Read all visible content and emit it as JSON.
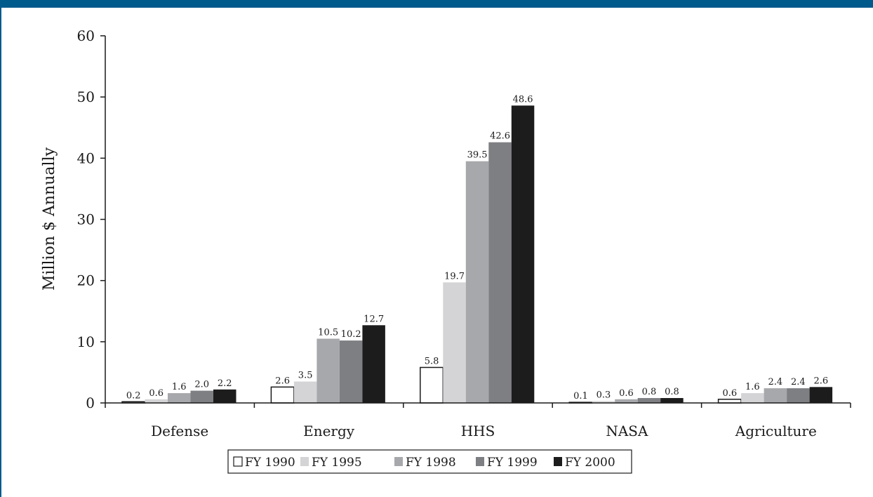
{
  "colors": {
    "frame_bar": "#005a8c",
    "axis": "#1a1a1a"
  },
  "chart_data": {
    "type": "bar",
    "title": "",
    "xlabel": "",
    "ylabel": "Million $ Annually",
    "ylim": [
      0,
      60
    ],
    "yticks": [
      0,
      10,
      20,
      30,
      40,
      50,
      60
    ],
    "grid": false,
    "legend_position": "bottom",
    "categories": [
      "Defense",
      "Energy",
      "HHS",
      "NASA",
      "Agriculture"
    ],
    "series": [
      {
        "name": "FY 1990",
        "color": "#ffffff",
        "stroke": "#1a1a1a",
        "values": [
          0.2,
          2.6,
          5.8,
          0.1,
          0.6
        ]
      },
      {
        "name": "FY 1995",
        "color": "#d4d4d6",
        "stroke": "none",
        "values": [
          0.6,
          3.5,
          19.7,
          0.3,
          1.6
        ]
      },
      {
        "name": "FY 1998",
        "color": "#a7a8ab",
        "stroke": "none",
        "values": [
          1.6,
          10.5,
          39.5,
          0.6,
          2.4
        ]
      },
      {
        "name": "FY 1999",
        "color": "#7e7f82",
        "stroke": "none",
        "values": [
          2.0,
          10.2,
          42.6,
          0.8,
          2.4
        ]
      },
      {
        "name": "FY 2000",
        "color": "#1c1c1c",
        "stroke": "none",
        "values": [
          2.2,
          12.7,
          48.6,
          0.8,
          2.6
        ]
      }
    ],
    "data_labels": [
      [
        "0.2",
        "2.6",
        "5.8",
        "0.1",
        "0.6"
      ],
      [
        "0.6",
        "3.5",
        "19.7",
        "0.3",
        "1.6"
      ],
      [
        "1.6",
        "10.5",
        "39.5",
        "0.6",
        "2.4"
      ],
      [
        "2.0",
        "10.2",
        "42.6",
        "0.8",
        "2.4"
      ],
      [
        "2.2",
        "12.7",
        "48.6",
        "0.8",
        "2.6"
      ]
    ]
  }
}
